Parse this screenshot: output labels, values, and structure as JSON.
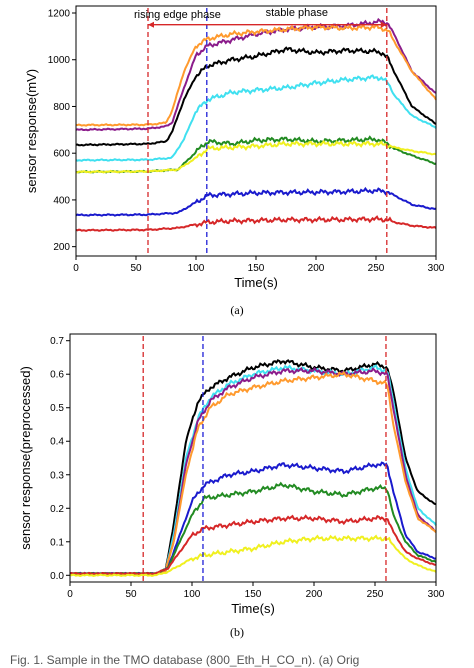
{
  "caption_fragment": "Fig. 1. Sample in the TMO database (800_Eth_H_CO_n). (a) Orig",
  "chart_data": [
    {
      "type": "line",
      "panel_label": "(a)",
      "xlabel": "Time(s)",
      "ylabel": "sensor response(mV)",
      "xlim": [
        0,
        300
      ],
      "ylim": [
        160,
        1230
      ],
      "xticks": [
        0,
        50,
        100,
        150,
        200,
        250,
        300
      ],
      "yticks": [
        200,
        400,
        600,
        800,
        1000,
        1200
      ],
      "grid": false,
      "annotations": {
        "rising_label": "rising edge phase",
        "stable_label": "stable phase",
        "vlines": [
          {
            "x": 60,
            "color": "#d62728"
          },
          {
            "x": 109,
            "color": "#1f1fd6"
          },
          {
            "x": 259,
            "color": "#d62728"
          }
        ],
        "arrows_y": 1150
      },
      "series": [
        {
          "color": "#8b1c8b",
          "x": [
            0,
            60,
            75,
            80,
            90,
            100,
            110,
            130,
            150,
            175,
            200,
            225,
            250,
            255,
            260,
            265,
            280,
            300
          ],
          "y": [
            700,
            705,
            715,
            730,
            880,
            1020,
            1060,
            1085,
            1110,
            1130,
            1140,
            1145,
            1160,
            1165,
            1155,
            1110,
            950,
            855
          ]
        },
        {
          "color": "#ff9a2e",
          "x": [
            0,
            60,
            75,
            80,
            90,
            100,
            110,
            130,
            150,
            175,
            200,
            225,
            250,
            255,
            260,
            265,
            280,
            300
          ],
          "y": [
            720,
            722,
            730,
            780,
            950,
            1060,
            1090,
            1110,
            1120,
            1130,
            1140,
            1135,
            1140,
            1135,
            1125,
            1080,
            950,
            830
          ]
        },
        {
          "color": "#000000",
          "x": [
            0,
            60,
            75,
            80,
            90,
            100,
            110,
            130,
            150,
            175,
            200,
            225,
            250,
            255,
            260,
            265,
            280,
            300
          ],
          "y": [
            635,
            640,
            650,
            690,
            830,
            930,
            975,
            1000,
            1015,
            1045,
            1030,
            1040,
            1035,
            1030,
            1005,
            950,
            800,
            725
          ]
        },
        {
          "color": "#40e0f0",
          "x": [
            0,
            60,
            80,
            90,
            100,
            110,
            130,
            150,
            175,
            200,
            225,
            250,
            255,
            260,
            265,
            280,
            300
          ],
          "y": [
            570,
            572,
            580,
            660,
            780,
            830,
            860,
            870,
            880,
            900,
            915,
            925,
            920,
            900,
            850,
            760,
            710
          ]
        },
        {
          "color": "#228b22",
          "x": [
            0,
            60,
            85,
            95,
            105,
            110,
            130,
            150,
            175,
            200,
            225,
            250,
            260,
            265,
            280,
            300
          ],
          "y": [
            520,
            522,
            530,
            580,
            630,
            650,
            640,
            655,
            660,
            650,
            655,
            660,
            640,
            620,
            590,
            555
          ]
        },
        {
          "color": "#f0f020",
          "x": [
            0,
            60,
            85,
            100,
            110,
            130,
            150,
            175,
            200,
            225,
            250,
            260,
            265,
            280,
            300
          ],
          "y": [
            520,
            522,
            530,
            580,
            620,
            625,
            630,
            640,
            640,
            640,
            640,
            635,
            625,
            610,
            595
          ]
        },
        {
          "color": "#1a1acd",
          "x": [
            0,
            60,
            85,
            100,
            110,
            130,
            150,
            175,
            200,
            225,
            250,
            260,
            265,
            280,
            300
          ],
          "y": [
            335,
            337,
            345,
            390,
            420,
            425,
            430,
            432,
            433,
            435,
            440,
            435,
            420,
            380,
            360
          ]
        },
        {
          "color": "#d62728",
          "x": [
            0,
            60,
            85,
            100,
            110,
            130,
            150,
            175,
            200,
            225,
            250,
            260,
            265,
            280,
            300
          ],
          "y": [
            270,
            272,
            280,
            295,
            305,
            310,
            312,
            315,
            315,
            316,
            318,
            315,
            305,
            290,
            280
          ]
        }
      ]
    },
    {
      "type": "line",
      "panel_label": "(b)",
      "xlabel": "Time(s)",
      "ylabel": "sensor response(preprocessed)",
      "xlim": [
        0,
        300
      ],
      "ylim": [
        -0.02,
        0.72
      ],
      "xticks": [
        0,
        50,
        100,
        150,
        200,
        250,
        300
      ],
      "yticks": [
        0.0,
        0.1,
        0.2,
        0.3,
        0.4,
        0.5,
        0.6,
        0.7
      ],
      "grid": false,
      "annotations": {
        "vlines": [
          {
            "x": 60,
            "color": "#d62728"
          },
          {
            "x": 109,
            "color": "#1f1fd6"
          },
          {
            "x": 259,
            "color": "#d62728"
          }
        ]
      },
      "series": [
        {
          "color": "#000000",
          "x": [
            0,
            70,
            78,
            85,
            95,
            105,
            115,
            130,
            150,
            175,
            200,
            225,
            250,
            260,
            265,
            275,
            285,
            300
          ],
          "y": [
            0.005,
            0.005,
            0.01,
            0.15,
            0.4,
            0.52,
            0.56,
            0.59,
            0.62,
            0.64,
            0.62,
            0.61,
            0.63,
            0.62,
            0.55,
            0.35,
            0.25,
            0.21
          ]
        },
        {
          "color": "#40e0f0",
          "x": [
            0,
            70,
            78,
            85,
            95,
            105,
            115,
            130,
            150,
            175,
            200,
            225,
            250,
            260,
            265,
            275,
            285,
            300
          ],
          "y": [
            0.005,
            0.005,
            0.01,
            0.12,
            0.35,
            0.47,
            0.53,
            0.57,
            0.6,
            0.62,
            0.61,
            0.6,
            0.62,
            0.61,
            0.52,
            0.32,
            0.2,
            0.15
          ]
        },
        {
          "color": "#8b1c8b",
          "x": [
            0,
            70,
            78,
            85,
            95,
            105,
            115,
            130,
            150,
            175,
            200,
            225,
            250,
            260,
            265,
            275,
            285,
            300
          ],
          "y": [
            0.005,
            0.005,
            0.01,
            0.1,
            0.33,
            0.46,
            0.52,
            0.56,
            0.59,
            0.61,
            0.61,
            0.6,
            0.61,
            0.6,
            0.5,
            0.3,
            0.18,
            0.13
          ]
        },
        {
          "color": "#ff9a2e",
          "x": [
            0,
            70,
            78,
            85,
            95,
            105,
            115,
            130,
            150,
            175,
            200,
            225,
            250,
            260,
            265,
            275,
            285,
            300
          ],
          "y": [
            0.005,
            0.005,
            0.01,
            0.1,
            0.3,
            0.44,
            0.5,
            0.54,
            0.56,
            0.58,
            0.59,
            0.6,
            0.58,
            0.57,
            0.45,
            0.28,
            0.17,
            0.13
          ]
        },
        {
          "color": "#1a1acd",
          "x": [
            0,
            70,
            80,
            90,
            100,
            110,
            130,
            150,
            175,
            200,
            225,
            250,
            260,
            265,
            275,
            285,
            300
          ],
          "y": [
            0.005,
            0.005,
            0.02,
            0.12,
            0.22,
            0.27,
            0.3,
            0.31,
            0.33,
            0.32,
            0.31,
            0.33,
            0.33,
            0.25,
            0.12,
            0.07,
            0.05
          ]
        },
        {
          "color": "#228b22",
          "x": [
            0,
            70,
            80,
            90,
            100,
            110,
            130,
            150,
            175,
            200,
            225,
            250,
            260,
            265,
            275,
            285,
            300
          ],
          "y": [
            0.005,
            0.005,
            0.02,
            0.1,
            0.18,
            0.23,
            0.24,
            0.25,
            0.27,
            0.25,
            0.24,
            0.26,
            0.26,
            0.18,
            0.1,
            0.06,
            0.04
          ]
        },
        {
          "color": "#d62728",
          "x": [
            0,
            70,
            80,
            90,
            100,
            110,
            130,
            150,
            175,
            200,
            225,
            250,
            260,
            265,
            275,
            285,
            300
          ],
          "y": [
            0.005,
            0.005,
            0.02,
            0.07,
            0.12,
            0.14,
            0.15,
            0.16,
            0.17,
            0.17,
            0.16,
            0.17,
            0.17,
            0.13,
            0.07,
            0.05,
            0.03
          ]
        },
        {
          "color": "#f0f020",
          "x": [
            0,
            70,
            80,
            90,
            100,
            110,
            130,
            150,
            175,
            200,
            225,
            250,
            260,
            265,
            275,
            285,
            300
          ],
          "y": [
            0.0,
            0.0,
            0.01,
            0.03,
            0.05,
            0.06,
            0.07,
            0.08,
            0.1,
            0.11,
            0.11,
            0.11,
            0.11,
            0.09,
            0.05,
            0.03,
            0.01
          ]
        }
      ]
    }
  ]
}
